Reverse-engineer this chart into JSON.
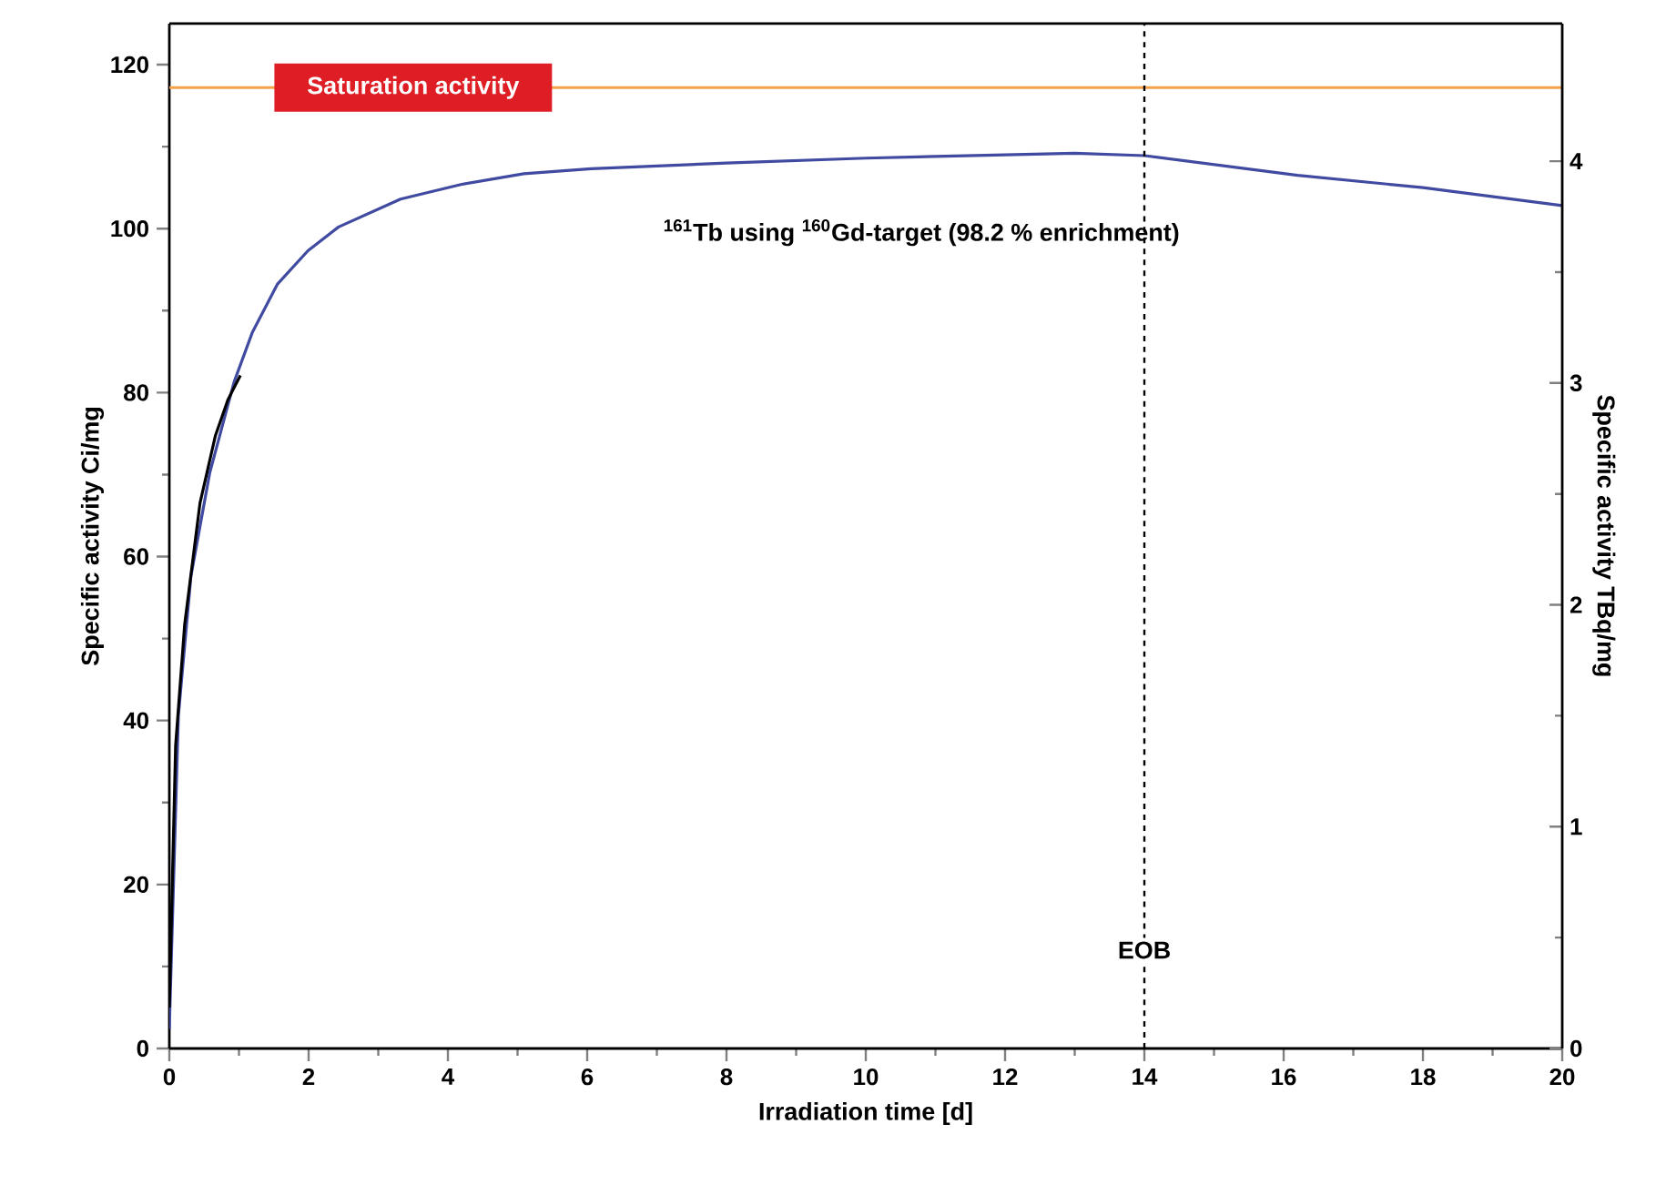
{
  "chart_data": {
    "type": "line",
    "xlabel": "Irradiation time [d]",
    "ylabel": "Specific activity Ci/mg",
    "y2label": "Specific activity TBq/mg",
    "xlim": [
      0,
      20
    ],
    "xticks": [
      0,
      2,
      4,
      6,
      8,
      10,
      12,
      14,
      16,
      18,
      20
    ],
    "ylim": [
      0,
      125
    ],
    "yticks": [
      0,
      20,
      40,
      60,
      80,
      100,
      120
    ],
    "y2lim": [
      0,
      4.62
    ],
    "y2ticks": [
      0,
      1,
      2,
      3,
      4
    ],
    "marker": "none",
    "line_style": "solid",
    "series": [
      {
        "color": "#3f4aa0",
        "x": [
          0,
          0.13,
          0.31,
          0.58,
          0.93,
          1.19,
          1.55,
          1.99,
          2.43,
          3.32,
          4.2,
          5.09,
          6.06,
          8,
          10,
          12,
          13,
          14,
          16.2,
          18,
          20
        ],
        "values": [
          2.4,
          40.6,
          57.6,
          70.2,
          81.3,
          87.3,
          93.2,
          97.3,
          100.2,
          103.6,
          105.4,
          106.7,
          107.3,
          108.0,
          108.6,
          109.0,
          109.2,
          108.9,
          106.5,
          105.0,
          102.8
        ]
      },
      {
        "color": "#000000",
        "x": [
          0,
          0.09,
          0.22,
          0.44,
          0.66,
          0.84,
          1.02
        ],
        "values": [
          5,
          36.9,
          51.7,
          66.5,
          74.7,
          79.1,
          82.1
        ]
      }
    ],
    "ref_lines": [
      {
        "axis": "y",
        "value": 117.2,
        "label": "Saturation activity",
        "color": "#f5a04a",
        "line_style": "solid"
      },
      {
        "axis": "x",
        "value": 14,
        "label": "EOB",
        "color": "#000000",
        "line_style": "dashed"
      }
    ],
    "annotations": [
      "$^{161}$Tb using $^{160}$Gd-target (98.2 % enrichment)"
    ]
  }
}
